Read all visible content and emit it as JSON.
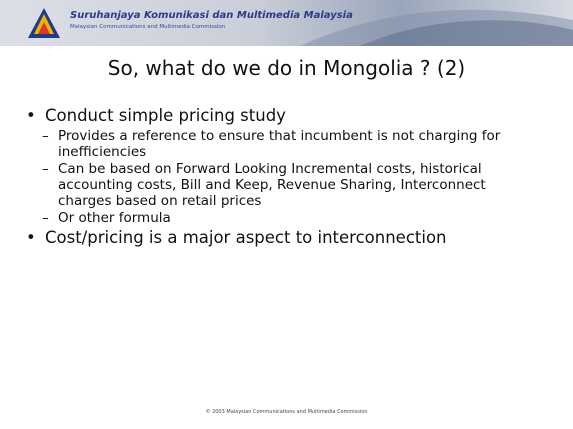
{
  "header": {
    "org_name": "Suruhanjaya Komunikasi dan Multimedia Malaysia",
    "org_subtitle": "Malaysian Communications and Multimedia Commission"
  },
  "title": "So, what do we do in Mongolia ? (2)",
  "bullets": [
    {
      "text": "Conduct simple pricing study",
      "subitems": [
        "Provides a reference to ensure that incumbent is not charging for inefficiencies",
        "Can be based on Forward Looking Incremental costs, historical accounting costs, Bill and Keep, Revenue Sharing, Interconnect charges based on retail prices",
        "Or other formula"
      ]
    },
    {
      "text": "Cost/pricing is a major aspect to interconnection",
      "subitems": []
    }
  ],
  "footer": "© 2003 Malaysian Communications and Multimedia Commission"
}
